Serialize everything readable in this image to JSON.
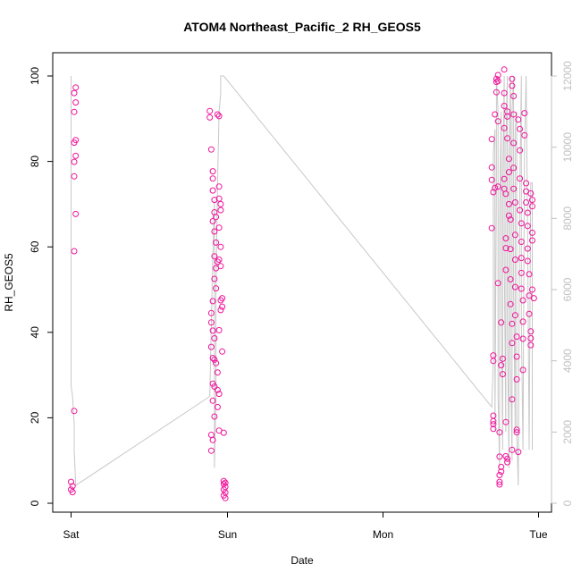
{
  "chart_data": {
    "type": "scatter",
    "title": "ATOM4 Northeast_Pacific_2 RH_GEOS5",
    "xlabel": "Date",
    "ylabel": "RH_GEOS5",
    "x_ticks": [
      "Sat",
      "Sun",
      "Mon",
      "Tue"
    ],
    "x_range_days": [
      -0.03,
      3.03
    ],
    "ylim": [
      0,
      100
    ],
    "y_ticks": [
      0,
      20,
      40,
      60,
      80,
      100
    ],
    "y2lim": [
      0,
      12000
    ],
    "y2_ticks": [
      0,
      2000,
      4000,
      6000,
      8000,
      10000,
      12000
    ],
    "grid": false,
    "colors": {
      "points": "#f0149b",
      "altitude_line": "#c8c8c8",
      "axis": "#000000"
    },
    "series": [
      {
        "style": "points",
        "points": [
          [
            0.0,
            5.0
          ],
          [
            0.01,
            4.0
          ],
          [
            0.0,
            3.2
          ],
          [
            0.01,
            2.6
          ],
          [
            0.02,
            21.6
          ],
          [
            0.02,
            59.0
          ],
          [
            0.03,
            67.7
          ],
          [
            0.02,
            76.5
          ],
          [
            0.02,
            79.9
          ],
          [
            0.03,
            81.3
          ],
          [
            0.02,
            84.4
          ],
          [
            0.03,
            85.0
          ],
          [
            0.02,
            91.6
          ],
          [
            0.03,
            93.8
          ],
          [
            0.02,
            96.0
          ],
          [
            0.03,
            97.3
          ],
          [
            0.89,
            91.8
          ],
          [
            0.89,
            90.3
          ],
          [
            0.9,
            82.8
          ],
          [
            0.91,
            77.7
          ],
          [
            0.91,
            76.0
          ],
          [
            0.91,
            73.2
          ],
          [
            0.92,
            71.0
          ],
          [
            0.92,
            68.1
          ],
          [
            0.93,
            67.0
          ],
          [
            0.91,
            66.0
          ],
          [
            0.92,
            63.6
          ],
          [
            0.93,
            61.0
          ],
          [
            0.92,
            57.8
          ],
          [
            0.93,
            55.0
          ],
          [
            0.94,
            56.5
          ],
          [
            0.92,
            52.5
          ],
          [
            0.93,
            50.3
          ],
          [
            0.91,
            47.3
          ],
          [
            0.9,
            44.5
          ],
          [
            0.9,
            42.3
          ],
          [
            0.91,
            40.4
          ],
          [
            0.92,
            38.6
          ],
          [
            0.9,
            36.6
          ],
          [
            0.91,
            34.0
          ],
          [
            0.92,
            33.6
          ],
          [
            0.93,
            32.8
          ],
          [
            0.94,
            30.6
          ],
          [
            0.91,
            28.0
          ],
          [
            0.92,
            27.3
          ],
          [
            0.94,
            26.5
          ],
          [
            0.95,
            25.6
          ],
          [
            0.91,
            24.0
          ],
          [
            0.94,
            22.5
          ],
          [
            0.92,
            20.3
          ],
          [
            0.95,
            17.0
          ],
          [
            0.9,
            16.0
          ],
          [
            0.91,
            14.8
          ],
          [
            0.9,
            12.3
          ],
          [
            0.95,
            74.1
          ],
          [
            0.95,
            71.3
          ],
          [
            0.96,
            70.0
          ],
          [
            0.96,
            68.6
          ],
          [
            0.95,
            64.5
          ],
          [
            0.96,
            60.0
          ],
          [
            0.95,
            57.0
          ],
          [
            0.96,
            55.5
          ],
          [
            0.97,
            48.0
          ],
          [
            0.96,
            47.5
          ],
          [
            0.97,
            46.0
          ],
          [
            0.96,
            45.2
          ],
          [
            0.95,
            40.5
          ],
          [
            0.97,
            35.5
          ],
          [
            0.94,
            91.0
          ],
          [
            0.95,
            90.6
          ],
          [
            0.98,
            16.5
          ],
          [
            0.98,
            5.2
          ],
          [
            0.99,
            4.8
          ],
          [
            0.98,
            4.5
          ],
          [
            0.99,
            3.8
          ],
          [
            0.98,
            3.2
          ],
          [
            0.99,
            2.5
          ],
          [
            0.98,
            1.8
          ],
          [
            0.99,
            1.2
          ],
          [
            2.7,
            64.4
          ],
          [
            2.7,
            85.2
          ],
          [
            2.7,
            78.6
          ],
          [
            2.7,
            75.7
          ],
          [
            2.71,
            72.8
          ],
          [
            2.71,
            34.6
          ],
          [
            2.71,
            33.3
          ],
          [
            2.71,
            20.5
          ],
          [
            2.71,
            19.2
          ],
          [
            2.71,
            18.5
          ],
          [
            2.71,
            17.4
          ],
          [
            2.72,
            91.0
          ],
          [
            2.72,
            73.8
          ],
          [
            2.73,
            99.3
          ],
          [
            2.73,
            98.6
          ],
          [
            2.73,
            96.2
          ],
          [
            2.74,
            100.2
          ],
          [
            2.74,
            98.8
          ],
          [
            2.74,
            89.4
          ],
          [
            2.74,
            74.1
          ],
          [
            2.74,
            51.5
          ],
          [
            2.75,
            16.6
          ],
          [
            2.75,
            10.9
          ],
          [
            2.75,
            6.6
          ],
          [
            2.75,
            5.0
          ],
          [
            2.75,
            4.4
          ],
          [
            2.76,
            8.5
          ],
          [
            2.76,
            7.4
          ],
          [
            2.76,
            42.3
          ],
          [
            2.76,
            32.3
          ],
          [
            2.77,
            33.8
          ],
          [
            2.77,
            30.2
          ],
          [
            2.78,
            101.5
          ],
          [
            2.78,
            96.0
          ],
          [
            2.78,
            93.0
          ],
          [
            2.78,
            87.8
          ],
          [
            2.78,
            75.9
          ],
          [
            2.78,
            73.6
          ],
          [
            2.79,
            72.4
          ],
          [
            2.79,
            62.0
          ],
          [
            2.79,
            59.7
          ],
          [
            2.79,
            54.6
          ],
          [
            2.79,
            19.0
          ],
          [
            2.79,
            11.0
          ],
          [
            2.8,
            10.4
          ],
          [
            2.8,
            9.6
          ],
          [
            2.8,
            91.7
          ],
          [
            2.8,
            90.5
          ],
          [
            2.8,
            85.4
          ],
          [
            2.81,
            80.6
          ],
          [
            2.81,
            77.5
          ],
          [
            2.81,
            70.0
          ],
          [
            2.81,
            67.3
          ],
          [
            2.82,
            66.4
          ],
          [
            2.82,
            59.5
          ],
          [
            2.82,
            52.4
          ],
          [
            2.82,
            46.6
          ],
          [
            2.83,
            42.0
          ],
          [
            2.83,
            37.5
          ],
          [
            2.83,
            24.3
          ],
          [
            2.83,
            12.5
          ],
          [
            2.83,
            99.3
          ],
          [
            2.83,
            97.7
          ],
          [
            2.84,
            95.3
          ],
          [
            2.84,
            91.0
          ],
          [
            2.84,
            84.3
          ],
          [
            2.84,
            78.5
          ],
          [
            2.84,
            73.6
          ],
          [
            2.85,
            70.4
          ],
          [
            2.85,
            62.8
          ],
          [
            2.85,
            57.0
          ],
          [
            2.85,
            50.6
          ],
          [
            2.85,
            44.0
          ],
          [
            2.86,
            39.0
          ],
          [
            2.86,
            34.3
          ],
          [
            2.86,
            29.0
          ],
          [
            2.86,
            17.2
          ],
          [
            2.86,
            16.6
          ],
          [
            2.87,
            12.0
          ],
          [
            2.87,
            89.8
          ],
          [
            2.88,
            87.6
          ],
          [
            2.88,
            82.6
          ],
          [
            2.88,
            76.0
          ],
          [
            2.88,
            68.6
          ],
          [
            2.89,
            65.5
          ],
          [
            2.89,
            61.2
          ],
          [
            2.89,
            57.4
          ],
          [
            2.89,
            53.9
          ],
          [
            2.89,
            50.2
          ],
          [
            2.9,
            47.5
          ],
          [
            2.9,
            42.5
          ],
          [
            2.9,
            38.5
          ],
          [
            2.9,
            31.2
          ],
          [
            2.91,
            91.3
          ],
          [
            2.91,
            86.1
          ],
          [
            2.92,
            74.9
          ],
          [
            2.92,
            73.0
          ],
          [
            2.92,
            70.4
          ],
          [
            2.93,
            68.0
          ],
          [
            2.93,
            64.9
          ],
          [
            2.93,
            59.6
          ],
          [
            2.93,
            56.7
          ],
          [
            2.94,
            53.6
          ],
          [
            2.94,
            48.6
          ],
          [
            2.94,
            44.3
          ],
          [
            2.95,
            40.2
          ],
          [
            2.95,
            38.6
          ],
          [
            2.95,
            37.0
          ],
          [
            2.95,
            72.5
          ],
          [
            2.96,
            71.0
          ],
          [
            2.96,
            69.5
          ],
          [
            2.96,
            63.3
          ],
          [
            2.96,
            61.5
          ],
          [
            2.96,
            50.0
          ],
          [
            2.97,
            48.0
          ]
        ]
      },
      {
        "style": "line",
        "axis": "right",
        "points": [
          [
            0.0,
            12000
          ],
          [
            0.0,
            3300
          ],
          [
            0.01,
            3000
          ],
          [
            0.02,
            2200
          ],
          [
            0.02,
            1500
          ],
          [
            0.03,
            500
          ],
          [
            0.89,
            3000
          ],
          [
            0.9,
            5000
          ],
          [
            0.91,
            7000
          ],
          [
            0.92,
            8500
          ],
          [
            0.92,
            2000
          ],
          [
            0.92,
            1000
          ],
          [
            0.93,
            3000
          ],
          [
            0.93,
            6000
          ],
          [
            0.94,
            9000
          ],
          [
            0.95,
            11000
          ],
          [
            0.96,
            11500
          ],
          [
            0.96,
            12000
          ],
          [
            0.97,
            12000
          ],
          [
            0.98,
            12000
          ],
          [
            0.98,
            12000
          ],
          [
            2.7,
            2700
          ],
          [
            2.71,
            4000
          ],
          [
            2.71,
            9800
          ],
          [
            2.72,
            10500
          ],
          [
            2.72,
            2000
          ],
          [
            2.73,
            9000
          ],
          [
            2.73,
            12000
          ],
          [
            2.74,
            11000
          ],
          [
            2.74,
            3000
          ],
          [
            2.75,
            1000
          ],
          [
            2.75,
            8000
          ],
          [
            2.76,
            11000
          ],
          [
            2.76,
            6000
          ],
          [
            2.77,
            1500
          ],
          [
            2.77,
            9000
          ],
          [
            2.78,
            12000
          ],
          [
            2.78,
            7000
          ],
          [
            2.79,
            2000
          ],
          [
            2.79,
            10000
          ],
          [
            2.8,
            12000
          ],
          [
            2.8,
            5000
          ],
          [
            2.81,
            1000
          ],
          [
            2.81,
            9500
          ],
          [
            2.82,
            12000
          ],
          [
            2.82,
            4000
          ],
          [
            2.83,
            1200
          ],
          [
            2.83,
            11000
          ],
          [
            2.84,
            12000
          ],
          [
            2.84,
            6000
          ],
          [
            2.85,
            2000
          ],
          [
            2.85,
            10500
          ],
          [
            2.86,
            11000
          ],
          [
            2.86,
            2000
          ],
          [
            2.87,
            500
          ],
          [
            2.88,
            9000
          ],
          [
            2.89,
            12000
          ],
          [
            2.89,
            5000
          ],
          [
            2.9,
            1500
          ],
          [
            2.91,
            10000
          ],
          [
            2.92,
            12000
          ],
          [
            2.92,
            12000
          ],
          [
            2.93,
            7500
          ],
          [
            2.94,
            1500
          ],
          [
            2.95,
            9000
          ],
          [
            2.96,
            9000
          ],
          [
            2.96,
            1500
          ]
        ]
      }
    ]
  }
}
